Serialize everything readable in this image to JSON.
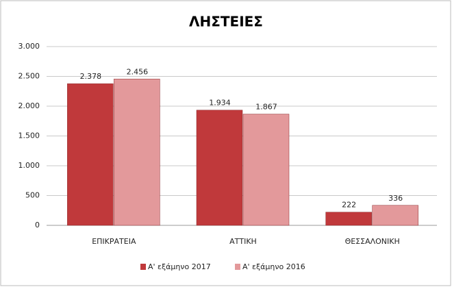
{
  "chart_data": {
    "type": "bar",
    "title": "ΛΗΣΤΕΙΕΣ",
    "categories": [
      "ΕΠΙΚΡΑΤΕΙΑ",
      "ΑΤΤΙΚΗ",
      "ΘΕΣΣΑΛΟΝΙΚΗ"
    ],
    "series": [
      {
        "name": "Α' εξάμηνο 2017",
        "color": "#c0393b",
        "values": [
          2378,
          1934,
          222
        ],
        "value_labels": [
          "2.378",
          "1.934",
          "222"
        ]
      },
      {
        "name": "Α' εξάμηνο 2016",
        "color": "#e3999b",
        "values": [
          2456,
          1867,
          336
        ],
        "value_labels": [
          "2.456",
          "1.867",
          "336"
        ]
      }
    ],
    "ylim": [
      0,
      3000
    ],
    "yticks": [
      0,
      500,
      {
        "value": 1000,
        "label": "1.000"
      },
      {
        "value": 1500,
        "label": "1.500"
      },
      {
        "value": 2000,
        "label": "2.000"
      },
      {
        "value": 2500,
        "label": "2.500"
      },
      {
        "value": 3000,
        "label": "3.000"
      }
    ],
    "grid": true,
    "legend": "bottom"
  }
}
